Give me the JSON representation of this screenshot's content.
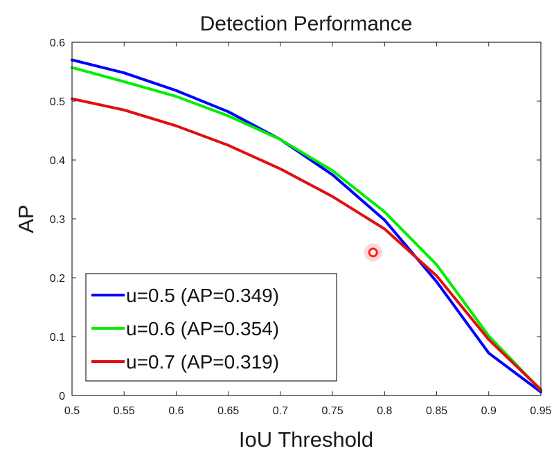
{
  "chart_data": {
    "type": "line",
    "title": "Detection Performance",
    "xlabel": "IoU Threshold",
    "ylabel": "AP",
    "xlim": [
      0.5,
      0.95
    ],
    "ylim": [
      0,
      0.6
    ],
    "x_ticks": [
      "0.5",
      "0.55",
      "0.6",
      "0.65",
      "0.7",
      "0.75",
      "0.8",
      "0.85",
      "0.9",
      "0.95"
    ],
    "y_ticks": [
      "0",
      "0.1",
      "0.2",
      "0.3",
      "0.4",
      "0.5",
      "0.6"
    ],
    "grid": false,
    "legend_position": "bottom-left",
    "x": [
      0.5,
      0.55,
      0.6,
      0.65,
      0.7,
      0.75,
      0.8,
      0.85,
      0.9,
      0.95
    ],
    "series": [
      {
        "name": "u=0.5 (AP=0.349)",
        "color": "#0000ff",
        "values": [
          0.57,
          0.548,
          0.518,
          0.482,
          0.435,
          0.375,
          0.298,
          0.193,
          0.072,
          0.006
        ]
      },
      {
        "name": "u=0.6 (AP=0.354)",
        "color": "#00ee00",
        "values": [
          0.557,
          0.533,
          0.508,
          0.475,
          0.435,
          0.382,
          0.312,
          0.222,
          0.101,
          0.009
        ]
      },
      {
        "name": "u=0.7 (AP=0.319)",
        "color": "#e01010",
        "values": [
          0.504,
          0.485,
          0.458,
          0.425,
          0.385,
          0.338,
          0.283,
          0.203,
          0.095,
          0.01
        ]
      }
    ],
    "marker": {
      "x": 0.789,
      "y": 0.243,
      "color": "#ff2020"
    }
  }
}
